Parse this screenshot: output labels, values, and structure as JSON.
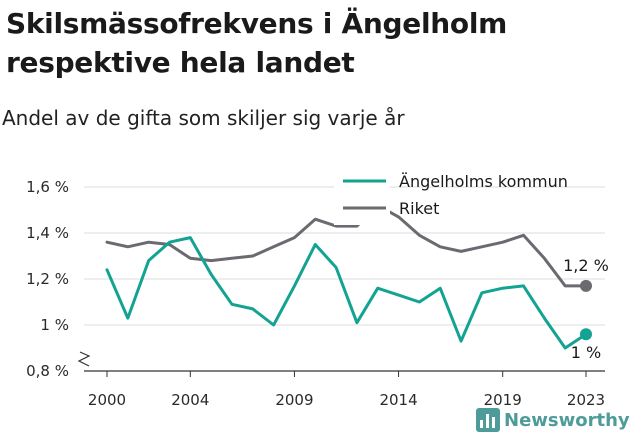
{
  "header": {
    "title": "Skilsmässofrekvens i Ängelholm respektive hela landet",
    "subtitle": "Andel av de gifta som skiljer sig varje år"
  },
  "brand": {
    "name": "Newsworthy",
    "color": "#4e9c9a"
  },
  "chart_data": {
    "type": "line",
    "x": [
      2000,
      2001,
      2002,
      2003,
      2004,
      2005,
      2006,
      2007,
      2008,
      2009,
      2010,
      2011,
      2012,
      2013,
      2014,
      2015,
      2016,
      2017,
      2018,
      2019,
      2020,
      2021,
      2022,
      2023
    ],
    "series": [
      {
        "name": "Ängelholms kommun",
        "color": "#12a392",
        "values": [
          1.24,
          1.03,
          1.28,
          1.36,
          1.38,
          1.22,
          1.09,
          1.07,
          1.0,
          1.17,
          1.35,
          1.25,
          1.01,
          1.16,
          1.13,
          1.1,
          1.16,
          0.93,
          1.14,
          1.16,
          1.17,
          1.03,
          0.9,
          0.96
        ],
        "end_label": "1 %"
      },
      {
        "name": "Riket",
        "color": "#6b6a70",
        "values": [
          1.36,
          1.34,
          1.36,
          1.35,
          1.29,
          1.28,
          1.29,
          1.3,
          1.34,
          1.38,
          1.46,
          1.43,
          1.43,
          1.52,
          1.47,
          1.39,
          1.34,
          1.32,
          1.34,
          1.36,
          1.39,
          1.29,
          1.17,
          1.17
        ],
        "end_label": "1,2 %"
      }
    ],
    "x_ticks": [
      2000,
      2004,
      2009,
      2014,
      2019,
      2023
    ],
    "y_ticks": [
      0.8,
      1.0,
      1.2,
      1.4,
      1.6
    ],
    "y_tick_labels": [
      "0,8 %",
      "1 %",
      "1,2 %",
      "1,4 %",
      "1,6 %"
    ],
    "ylim": [
      0.8,
      1.6
    ],
    "xlim": [
      2000,
      2023
    ],
    "grid": true,
    "y_axis_break": true,
    "legend_position": "top-right"
  }
}
